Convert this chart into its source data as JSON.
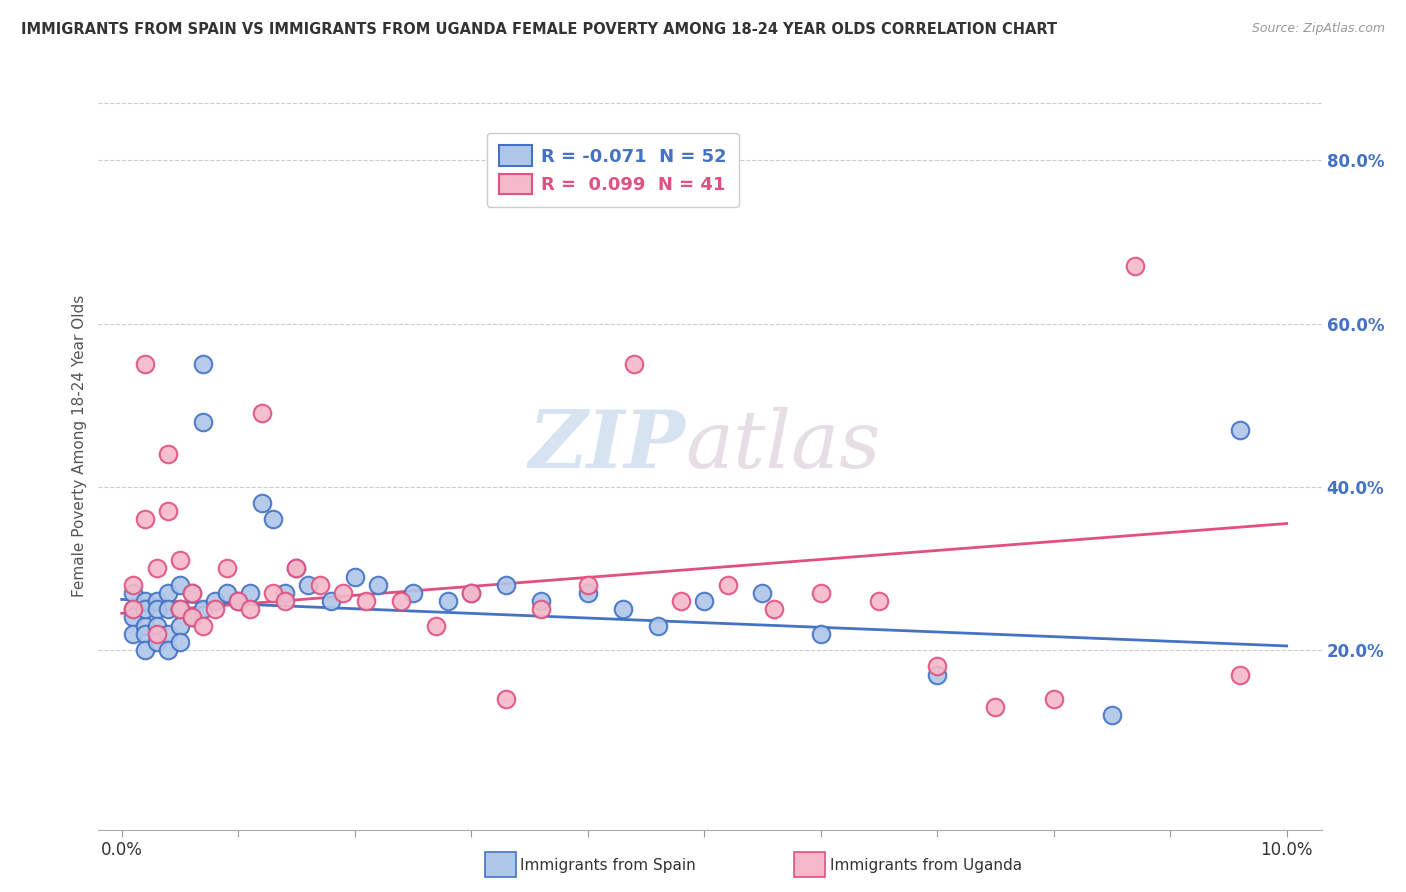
{
  "title": "IMMIGRANTS FROM SPAIN VS IMMIGRANTS FROM UGANDA FEMALE POVERTY AMONG 18-24 YEAR OLDS CORRELATION CHART",
  "source": "Source: ZipAtlas.com",
  "ylabel": "Female Poverty Among 18-24 Year Olds",
  "xlim": [
    -0.002,
    0.103
  ],
  "ylim": [
    -0.02,
    0.92
  ],
  "yticks_right": [
    0.2,
    0.4,
    0.6,
    0.8
  ],
  "ytick_right_labels": [
    "20.0%",
    "40.0%",
    "60.0%",
    "80.0%"
  ],
  "spain_color": "#aec6e8",
  "uganda_color": "#f5b8c8",
  "spain_edge": "#4472c4",
  "uganda_edge": "#e05080",
  "trend_spain_color": "#4472c4",
  "trend_uganda_color": "#e05080",
  "R_spain": -0.071,
  "N_spain": 52,
  "R_uganda": 0.099,
  "N_uganda": 41,
  "watermark_zip": "ZIP",
  "watermark_atlas": "atlas",
  "spain_x": [
    0.001,
    0.001,
    0.001,
    0.001,
    0.002,
    0.002,
    0.002,
    0.002,
    0.002,
    0.003,
    0.003,
    0.003,
    0.003,
    0.004,
    0.004,
    0.004,
    0.004,
    0.005,
    0.005,
    0.005,
    0.005,
    0.006,
    0.006,
    0.007,
    0.007,
    0.007,
    0.008,
    0.009,
    0.01,
    0.011,
    0.012,
    0.013,
    0.014,
    0.015,
    0.016,
    0.018,
    0.02,
    0.022,
    0.025,
    0.028,
    0.03,
    0.033,
    0.036,
    0.04,
    0.043,
    0.046,
    0.05,
    0.055,
    0.06,
    0.07,
    0.085,
    0.096
  ],
  "spain_y": [
    0.25,
    0.27,
    0.24,
    0.22,
    0.26,
    0.23,
    0.25,
    0.22,
    0.2,
    0.26,
    0.25,
    0.23,
    0.21,
    0.27,
    0.25,
    0.22,
    0.2,
    0.28,
    0.25,
    0.23,
    0.21,
    0.27,
    0.24,
    0.55,
    0.48,
    0.25,
    0.26,
    0.27,
    0.26,
    0.27,
    0.38,
    0.36,
    0.27,
    0.3,
    0.28,
    0.26,
    0.29,
    0.28,
    0.27,
    0.26,
    0.27,
    0.28,
    0.26,
    0.27,
    0.25,
    0.23,
    0.26,
    0.27,
    0.22,
    0.17,
    0.12,
    0.47
  ],
  "uganda_x": [
    0.001,
    0.001,
    0.002,
    0.002,
    0.003,
    0.003,
    0.004,
    0.004,
    0.005,
    0.005,
    0.006,
    0.006,
    0.007,
    0.008,
    0.009,
    0.01,
    0.011,
    0.012,
    0.013,
    0.014,
    0.015,
    0.017,
    0.019,
    0.021,
    0.024,
    0.027,
    0.03,
    0.033,
    0.036,
    0.04,
    0.044,
    0.048,
    0.052,
    0.056,
    0.06,
    0.065,
    0.07,
    0.075,
    0.08,
    0.087,
    0.096
  ],
  "uganda_y": [
    0.28,
    0.25,
    0.55,
    0.36,
    0.3,
    0.22,
    0.44,
    0.37,
    0.25,
    0.31,
    0.27,
    0.24,
    0.23,
    0.25,
    0.3,
    0.26,
    0.25,
    0.49,
    0.27,
    0.26,
    0.3,
    0.28,
    0.27,
    0.26,
    0.26,
    0.23,
    0.27,
    0.14,
    0.25,
    0.28,
    0.55,
    0.26,
    0.28,
    0.25,
    0.27,
    0.26,
    0.18,
    0.13,
    0.14,
    0.67,
    0.17
  ],
  "trend_spain_x0": 0.0,
  "trend_spain_y0": 0.262,
  "trend_spain_x1": 0.1,
  "trend_spain_y1": 0.205,
  "trend_uganda_x0": 0.0,
  "trend_uganda_y0": 0.245,
  "trend_uganda_x1": 0.1,
  "trend_uganda_y1": 0.355
}
